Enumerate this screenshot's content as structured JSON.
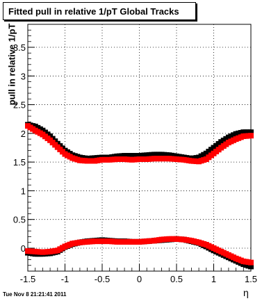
{
  "title": "Fitted pull in relative 1/pT  Global Tracks",
  "timestamp": "Tue Nov  8 21:21:41 2011",
  "chart_data": {
    "type": "scatter",
    "title": "Fitted pull in relative 1/pT  Global Tracks",
    "xlabel": "η",
    "ylabel": "pull in relative 1/pT",
    "xlim": [
      -1.5,
      1.5
    ],
    "ylim": [
      -0.4,
      3.9
    ],
    "grid": true,
    "x_ticks": [
      "-1.5",
      "-1",
      "-0.5",
      "0",
      "0.5",
      "1",
      "1.5"
    ],
    "y_ticks": [
      "0",
      "0.5",
      "1",
      "1.5",
      "2",
      "2.5",
      "3",
      "3.5"
    ],
    "x": [
      -1.5,
      -1.4,
      -1.3,
      -1.2,
      -1.1,
      -1.0,
      -0.9,
      -0.8,
      -0.7,
      -0.6,
      -0.5,
      -0.4,
      -0.3,
      -0.2,
      -0.1,
      0.0,
      0.1,
      0.2,
      0.3,
      0.4,
      0.5,
      0.6,
      0.7,
      0.8,
      0.9,
      1.0,
      1.1,
      1.2,
      1.3,
      1.4,
      1.5
    ],
    "series": [
      {
        "color": "#000000",
        "values": [
          2.15,
          2.12,
          2.05,
          1.95,
          1.82,
          1.7,
          1.62,
          1.58,
          1.56,
          1.57,
          1.58,
          1.58,
          1.6,
          1.61,
          1.61,
          1.61,
          1.62,
          1.63,
          1.63,
          1.62,
          1.6,
          1.58,
          1.56,
          1.58,
          1.65,
          1.75,
          1.85,
          1.93,
          1.99,
          2.02,
          2.02
        ]
      },
      {
        "color": "#ff0000",
        "values": [
          2.13,
          2.05,
          1.98,
          1.88,
          1.76,
          1.64,
          1.57,
          1.53,
          1.52,
          1.52,
          1.54,
          1.54,
          1.55,
          1.55,
          1.54,
          1.55,
          1.55,
          1.56,
          1.56,
          1.56,
          1.55,
          1.54,
          1.52,
          1.51,
          1.55,
          1.65,
          1.75,
          1.84,
          1.9,
          1.95,
          1.96
        ]
      },
      {
        "color": "#000000",
        "values": [
          -0.08,
          -0.1,
          -0.1,
          -0.09,
          -0.06,
          0.02,
          0.07,
          0.1,
          0.12,
          0.13,
          0.14,
          0.13,
          0.12,
          0.12,
          0.11,
          0.11,
          0.12,
          0.13,
          0.14,
          0.15,
          0.16,
          0.15,
          0.12,
          0.09,
          0.03,
          -0.04,
          -0.1,
          -0.16,
          -0.22,
          -0.28,
          -0.32
        ]
      },
      {
        "color": "#ff0000",
        "values": [
          -0.05,
          -0.06,
          -0.07,
          -0.06,
          -0.04,
          0.03,
          0.08,
          0.1,
          0.11,
          0.12,
          0.12,
          0.12,
          0.11,
          0.11,
          0.11,
          0.11,
          0.12,
          0.13,
          0.15,
          0.16,
          0.16,
          0.15,
          0.13,
          0.1,
          0.06,
          0.0,
          -0.06,
          -0.12,
          -0.18,
          -0.23,
          -0.25
        ]
      }
    ]
  }
}
